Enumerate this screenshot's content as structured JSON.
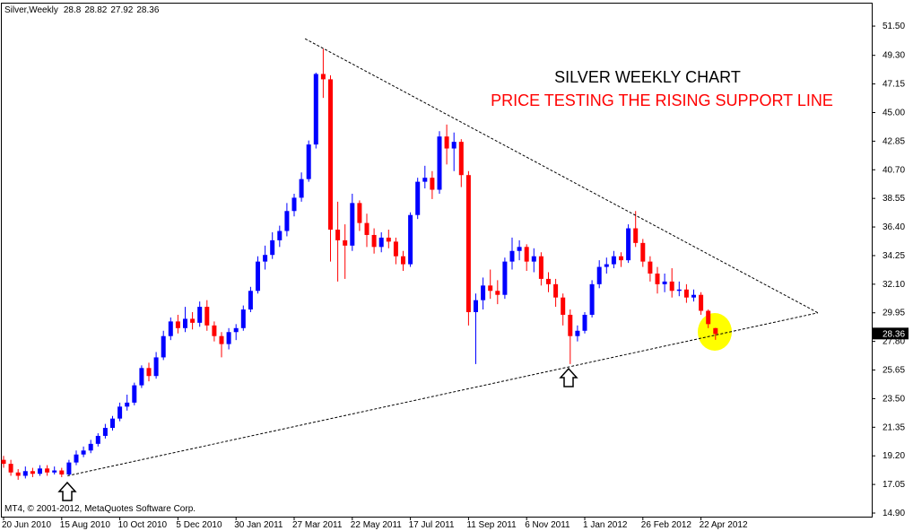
{
  "chart_data": {
    "type": "candlestick",
    "title": "SILVER WEEKLY CHART",
    "subtitle": "PRICE TESTING THE RISING SUPPORT LINE",
    "symbol": "Silver,Weekly",
    "copyright": "MT4, © 2001-2012, MetaQuotes Software Corp.",
    "up_color": "#0000ff",
    "down_color": "#ff0000",
    "title_color": "#000000",
    "subtitle_color": "#ff0000",
    "categories": [
      "20 Jun 2010",
      null,
      null,
      null,
      null,
      null,
      null,
      null,
      "15 Aug 2010",
      null,
      null,
      null,
      null,
      null,
      null,
      null,
      "10 Oct 2010",
      null,
      null,
      null,
      null,
      null,
      null,
      null,
      "5 Dec 2010",
      null,
      null,
      null,
      null,
      null,
      null,
      null,
      "30 Jan 2011",
      null,
      null,
      null,
      null,
      null,
      null,
      null,
      "27 Mar 2011",
      null,
      null,
      null,
      null,
      null,
      null,
      null,
      "22 May 2011",
      null,
      null,
      null,
      null,
      null,
      null,
      null,
      "17 Jul 2011",
      null,
      null,
      null,
      null,
      null,
      null,
      null,
      "11 Sep 2011",
      null,
      null,
      null,
      null,
      null,
      null,
      null,
      "6 Nov 2011",
      null,
      null,
      null,
      null,
      null,
      null,
      null,
      "1 Jan 2012",
      null,
      null,
      null,
      null,
      null,
      null,
      null,
      "26 Feb 2012",
      null,
      null,
      null,
      null,
      null,
      null,
      null,
      "22 Apr 2012",
      null,
      null
    ],
    "open": [
      18.9,
      18.6,
      17.95,
      17.7,
      18.05,
      17.85,
      18.25,
      17.95,
      18.1,
      17.8,
      18.7,
      19.3,
      19.6,
      20.1,
      20.7,
      21.3,
      22.0,
      22.9,
      23.2,
      24.5,
      25.8,
      25.2,
      26.6,
      28.2,
      29.3,
      28.8,
      29.5,
      29.2,
      30.4,
      29.0,
      28.2,
      27.6,
      28.5,
      28.8,
      30.2,
      31.6,
      33.8,
      34.3,
      35.4,
      36.1,
      37.6,
      38.6,
      40.0,
      42.6,
      47.9,
      47.5,
      36.2,
      35.4,
      35.0,
      38.2,
      36.7,
      35.8,
      34.9,
      35.6,
      35.3,
      34.2,
      33.6,
      37.3,
      39.8,
      40.1,
      39.2,
      43.2,
      42.3,
      42.8,
      40.3,
      30.0,
      30.9,
      32.0,
      31.6,
      31.3,
      33.8,
      34.6,
      34.9,
      33.8,
      34.2,
      32.5,
      32.1,
      31.1,
      29.8,
      28.2,
      28.6,
      29.8,
      32.1,
      33.4,
      33.6,
      34.2,
      33.9,
      36.3,
      35.2,
      33.8,
      32.9,
      32.1,
      32.3,
      31.6,
      31.7,
      31.1,
      31.3,
      30.1,
      28.8
    ],
    "high": [
      19.2,
      18.9,
      18.2,
      18.4,
      18.3,
      18.5,
      18.5,
      18.4,
      18.3,
      18.9,
      19.6,
      19.9,
      20.4,
      20.9,
      21.6,
      22.2,
      23.2,
      23.8,
      24.7,
      26.0,
      26.2,
      27.0,
      28.6,
      29.6,
      29.8,
      30.4,
      30.0,
      30.8,
      30.9,
      29.3,
      28.5,
      28.8,
      29.1,
      30.5,
      31.9,
      34.2,
      35.0,
      36.0,
      36.5,
      38.2,
      38.9,
      40.5,
      42.9,
      48.0,
      49.8,
      47.8,
      38.3,
      36.6,
      38.9,
      38.4,
      37.4,
      36.3,
      36.0,
      36.2,
      35.6,
      34.6,
      37.5,
      40.1,
      41.0,
      40.6,
      43.6,
      44.1,
      43.5,
      43.0,
      40.6,
      31.4,
      32.6,
      33.2,
      32.4,
      34.1,
      35.6,
      35.4,
      35.1,
      34.8,
      34.5,
      33.0,
      32.5,
      31.4,
      30.2,
      29.0,
      30.0,
      32.4,
      33.9,
      34.1,
      34.6,
      34.5,
      36.6,
      37.6,
      35.5,
      34.2,
      33.4,
      32.9,
      33.3,
      32.3,
      32.1,
      31.7,
      31.5,
      30.2,
      28.82
    ],
    "low": [
      18.3,
      17.7,
      17.4,
      17.5,
      17.6,
      17.7,
      17.7,
      17.8,
      17.6,
      17.7,
      18.5,
      19.1,
      19.4,
      19.9,
      20.5,
      21.1,
      21.8,
      22.6,
      23.0,
      24.3,
      24.8,
      25.0,
      26.4,
      27.9,
      28.4,
      28.5,
      28.7,
      28.9,
      28.6,
      27.8,
      26.6,
      27.2,
      27.9,
      28.6,
      30.0,
      31.4,
      33.2,
      34.0,
      34.9,
      35.7,
      37.2,
      38.3,
      39.8,
      42.3,
      46.1,
      33.8,
      32.3,
      32.5,
      34.6,
      36.1,
      34.9,
      34.4,
      34.5,
      34.8,
      33.6,
      33.1,
      33.4,
      37.0,
      39.3,
      38.5,
      38.9,
      41.1,
      40.6,
      39.4,
      29.0,
      26.1,
      30.2,
      31.0,
      30.6,
      31.0,
      33.2,
      33.9,
      33.1,
      33.0,
      32.0,
      31.5,
      30.4,
      29.0,
      26.1,
      27.8,
      28.4,
      29.6,
      31.8,
      32.9,
      33.3,
      33.4,
      33.7,
      34.9,
      33.4,
      32.3,
      31.4,
      31.5,
      31.1,
      31.2,
      30.7,
      30.8,
      29.8,
      28.8,
      27.92
    ],
    "close": [
      18.6,
      17.95,
      17.7,
      18.05,
      17.85,
      18.25,
      17.95,
      18.1,
      17.8,
      18.7,
      19.3,
      19.6,
      20.1,
      20.7,
      21.3,
      22.0,
      22.9,
      23.2,
      24.5,
      25.8,
      25.2,
      26.6,
      28.2,
      29.3,
      28.8,
      29.5,
      29.2,
      30.4,
      29.0,
      28.2,
      27.6,
      28.5,
      28.8,
      30.2,
      31.6,
      33.8,
      34.3,
      35.4,
      36.1,
      37.6,
      38.6,
      40.0,
      42.6,
      47.9,
      47.5,
      36.2,
      35.4,
      35.0,
      38.2,
      36.7,
      35.8,
      34.9,
      35.6,
      35.3,
      34.2,
      33.6,
      37.3,
      39.8,
      40.1,
      39.2,
      43.2,
      42.3,
      42.8,
      40.3,
      30.0,
      30.9,
      32.0,
      31.6,
      31.3,
      33.8,
      34.6,
      34.9,
      33.8,
      34.2,
      32.5,
      32.1,
      31.1,
      29.8,
      28.2,
      28.6,
      29.8,
      32.1,
      33.4,
      33.6,
      34.2,
      33.9,
      36.3,
      35.2,
      33.8,
      32.9,
      32.1,
      32.3,
      31.6,
      31.7,
      31.1,
      31.3,
      30.1,
      29.1,
      28.36
    ],
    "trendlines": [
      {
        "x": [
          41.5,
          112.1
        ],
        "y": [
          50.55,
          29.95
        ]
      },
      {
        "x": [
          8.8,
          112.1
        ],
        "y": [
          17.7,
          29.95
        ]
      }
    ],
    "ylim": [
      14.63,
      53.19
    ],
    "yticks": [
      {
        "value": 51.5,
        "label": "51.50"
      },
      {
        "value": 49.3,
        "label": "49.30"
      },
      {
        "value": 47.15,
        "label": "47.15"
      },
      {
        "value": 45,
        "label": "45.00"
      },
      42.85,
      {
        "value": 40.7,
        "label": "40.70"
      },
      38.55,
      {
        "value": 36.4,
        "label": "36.40"
      },
      34.25,
      {
        "value": 32.1,
        "label": "32.10"
      },
      29.95,
      {
        "value": 27.8,
        "label": "27.80"
      },
      25.65,
      {
        "value": 23.5,
        "label": "23.50"
      },
      21.35,
      {
        "value": 19.2,
        "label": "19.20"
      },
      17.05,
      {
        "value": 14.9,
        "label": "14.90"
      }
    ]
  }
}
